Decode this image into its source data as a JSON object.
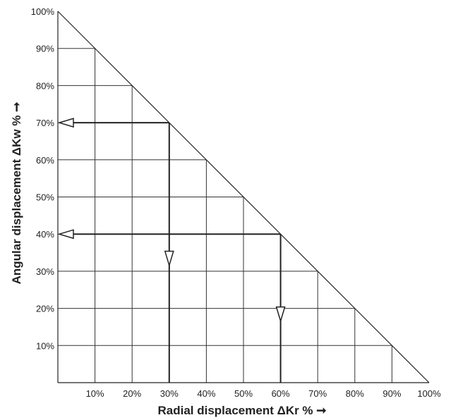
{
  "chart_data": {
    "type": "line",
    "title": "",
    "xlabel": "Radial displacement ΔKr % ➞",
    "ylabel": "Angular displacement ΔKw % ➞",
    "xlim": [
      0,
      100
    ],
    "ylim": [
      0,
      100
    ],
    "grid": true,
    "x_ticks": [
      "10%",
      "20%",
      "30%",
      "40%",
      "50%",
      "60%",
      "70%",
      "80%",
      "90%",
      "100%"
    ],
    "y_ticks": [
      "10%",
      "20%",
      "30%",
      "40%",
      "50%",
      "60%",
      "70%",
      "80%",
      "90%",
      "100%"
    ],
    "boundary": {
      "x": [
        0,
        100
      ],
      "y": [
        100,
        0
      ]
    },
    "examples": [
      {
        "radial": 30,
        "angular": 70
      },
      {
        "radial": 60,
        "angular": 40
      }
    ],
    "colors": {
      "lines": "#222222",
      "grid": "#333333",
      "background": "#ffffff"
    }
  }
}
